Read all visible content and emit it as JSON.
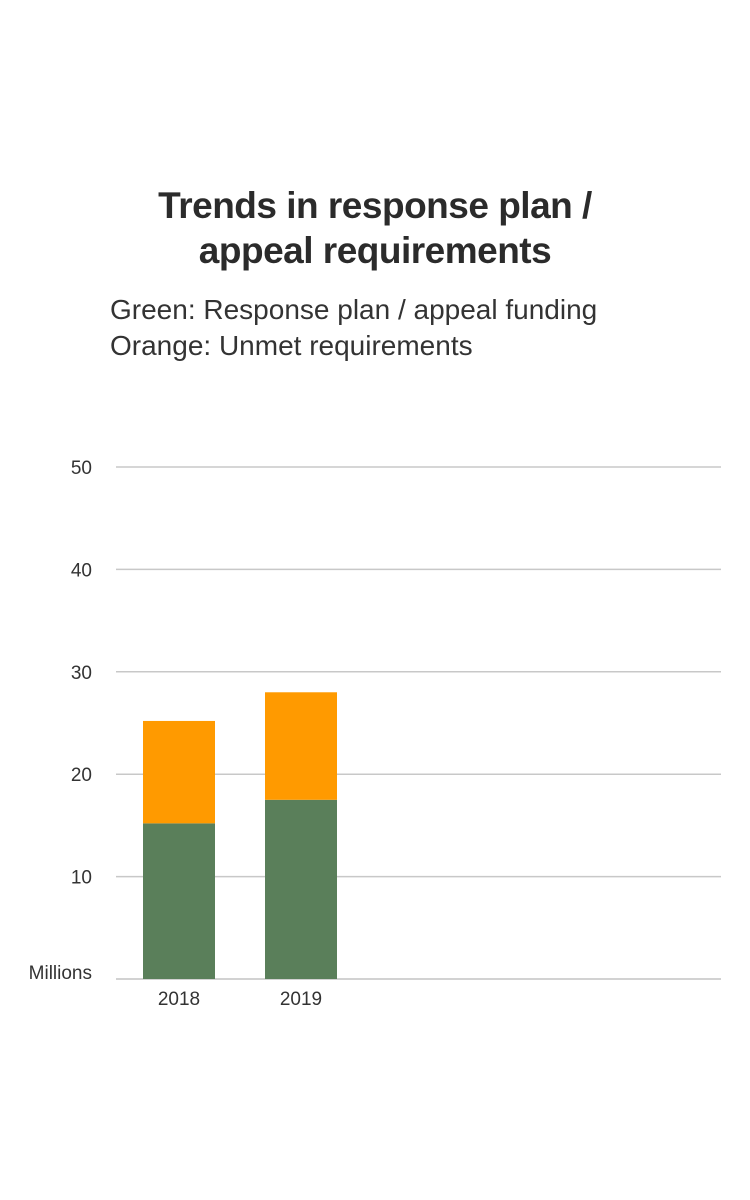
{
  "chart_data": {
    "type": "bar",
    "stacked": true,
    "title": "Trends in response plan / appeal requirements",
    "title_lines": [
      "Trends in response plan /",
      "appeal requirements"
    ],
    "subtitle_lines": [
      "Green: Response plan / appeal funding",
      "Orange: Unmet requirements"
    ],
    "ylabel": "Millions",
    "xlabel": "",
    "categories": [
      "2018",
      "2019"
    ],
    "series": [
      {
        "key": "funding",
        "values": [
          15.2,
          17.5
        ],
        "color": "#5a7f5a"
      },
      {
        "key": "unmet",
        "values": [
          10.0,
          10.5
        ],
        "color": "#ff9a00"
      }
    ],
    "ylim": [
      0,
      50
    ],
    "yticks": [
      10,
      20,
      30,
      40,
      50
    ],
    "grid": true,
    "legend": "none"
  }
}
